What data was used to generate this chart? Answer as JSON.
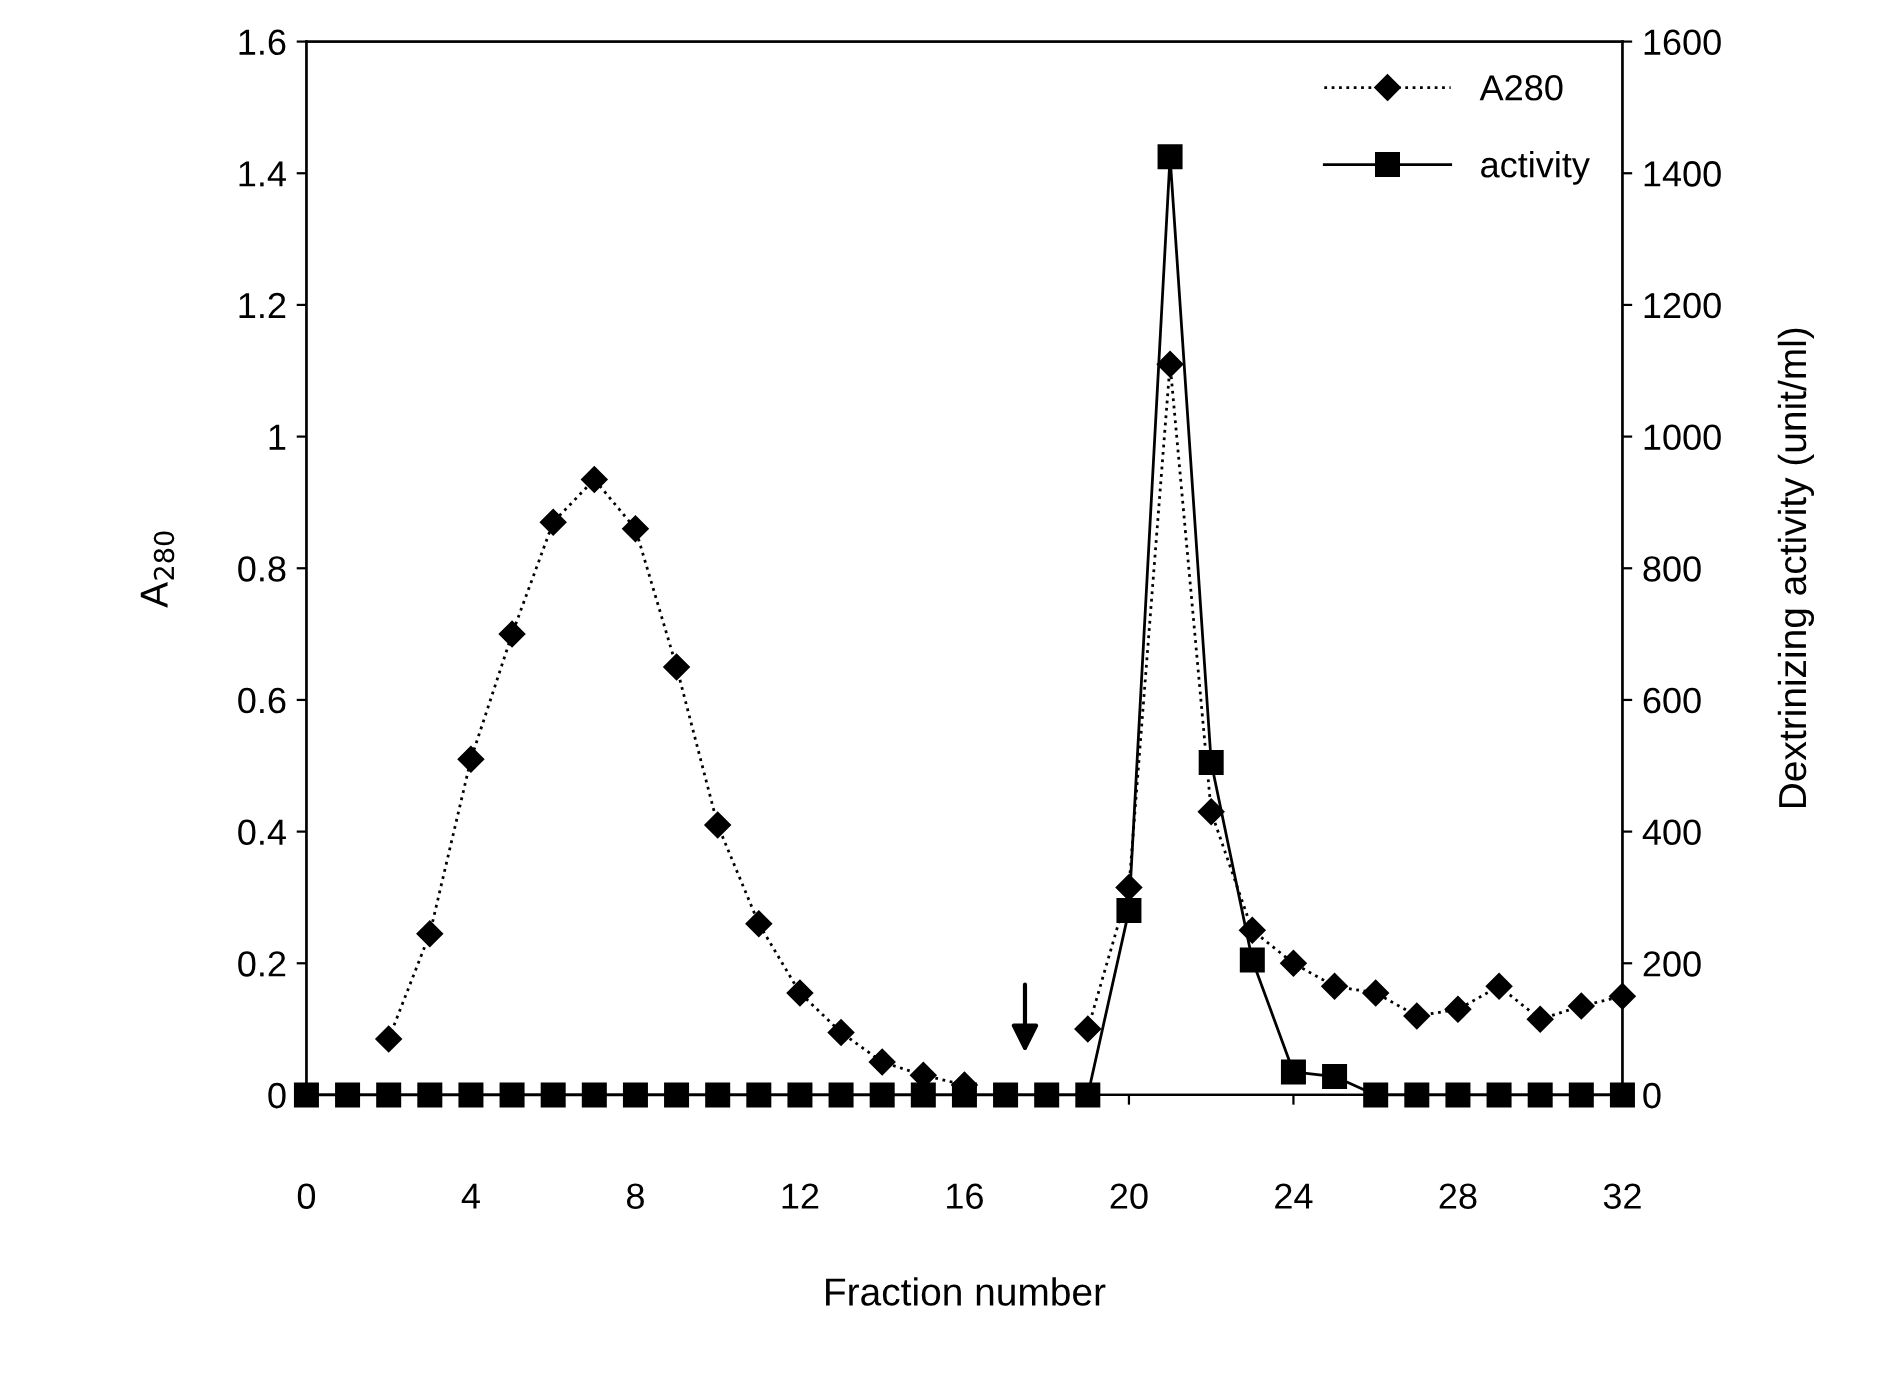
{
  "chart_data": {
    "type": "line",
    "xlabel": "Fraction number",
    "ylabel": "A$_{280}$",
    "y2label": "Dextrinizing activity (unit/ml)",
    "x": [
      0,
      1,
      2,
      3,
      4,
      5,
      6,
      7,
      8,
      9,
      10,
      11,
      12,
      13,
      14,
      15,
      16,
      17,
      18,
      19,
      20,
      21,
      22,
      23,
      24,
      25,
      26,
      27,
      28,
      29,
      30,
      31,
      32
    ],
    "series": [
      {
        "name": "A280",
        "color": "#000000",
        "marker": "diamond",
        "line_style": "dotted",
        "values": [
          null,
          null,
          0.085,
          0.245,
          0.51,
          0.7,
          0.87,
          0.935,
          0.86,
          0.65,
          0.41,
          0.26,
          0.155,
          0.095,
          0.05,
          0.03,
          0.015,
          null,
          null,
          0.1,
          0.315,
          1.11,
          0.43,
          0.25,
          0.2,
          0.165,
          0.155,
          0.12,
          0.13,
          0.165,
          0.115,
          0.135,
          0.15
        ]
      },
      {
        "name": "activity",
        "color": "#000000",
        "marker": "square",
        "line_style": "solid",
        "axis": "y2",
        "values": [
          0,
          0,
          0,
          0,
          0,
          0,
          0,
          0,
          0,
          0,
          0,
          0,
          0,
          0,
          0,
          0,
          0,
          0,
          0,
          0,
          280,
          1425,
          505,
          205,
          35,
          28,
          0,
          0,
          0,
          0,
          0,
          0,
          0
        ]
      }
    ],
    "xlim": [
      0,
      32
    ],
    "xticks": [
      0,
      4,
      8,
      12,
      16,
      20,
      24,
      28,
      32
    ],
    "ylim": [
      0,
      1.6
    ],
    "yticks": [
      0,
      0.2,
      0.4,
      0.6,
      0.8,
      1,
      1.2,
      1.4,
      1.6
    ],
    "y2lim": [
      0,
      1600
    ],
    "y2ticks": [
      0,
      200,
      400,
      600,
      800,
      1000,
      1200,
      1400,
      1600
    ],
    "legend": "top right"
  }
}
